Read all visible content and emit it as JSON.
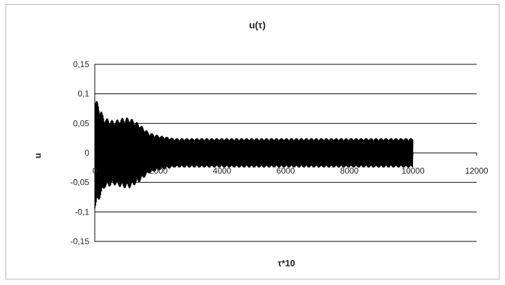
{
  "chart_data": {
    "type": "line",
    "title": "u(τ)",
    "xlabel": "τ*10",
    "ylabel": "u",
    "xlim": [
      0,
      12000
    ],
    "ylim": [
      -0.15,
      0.15
    ],
    "x_ticks": [
      "0",
      "2000",
      "4000",
      "6000",
      "8000",
      "10000",
      "12000"
    ],
    "y_ticks": [
      "0,15",
      "0,1",
      "0,05",
      "0",
      "-0,05",
      "-0,1",
      "-0,15"
    ],
    "grid": true,
    "legend": "none",
    "series": [
      {
        "color": "#000000",
        "envelope": {
          "x": [
            0,
            100,
            300,
            600,
            900,
            1100,
            1400,
            1700,
            2000,
            2500,
            3000,
            4000,
            6000,
            8000,
            9500,
            10000
          ],
          "upper": [
            0.095,
            0.085,
            0.06,
            0.055,
            0.06,
            0.06,
            0.05,
            0.035,
            0.03,
            0.025,
            0.025,
            0.025,
            0.025,
            0.025,
            0.025,
            0.025
          ],
          "lower": [
            -0.095,
            -0.085,
            -0.06,
            -0.055,
            -0.06,
            -0.06,
            -0.05,
            -0.035,
            -0.03,
            -0.025,
            -0.025,
            -0.025,
            -0.025,
            -0.025,
            -0.025,
            -0.025
          ]
        }
      }
    ]
  }
}
